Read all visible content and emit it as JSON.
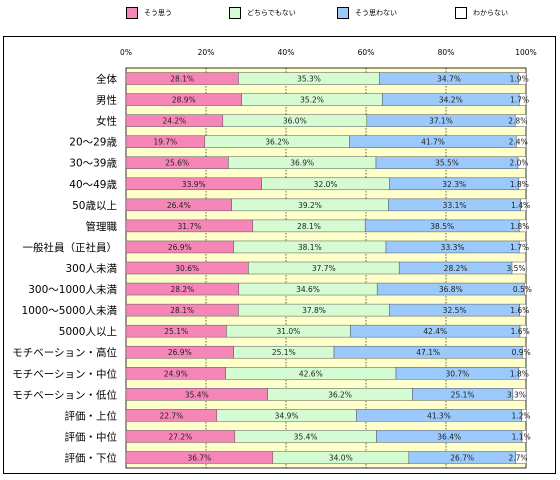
{
  "legend": [
    {
      "label": "そう思う",
      "color": "#f786b8"
    },
    {
      "label": "どちらでもない",
      "color": "#d5fbd2"
    },
    {
      "label": "そう思わない",
      "color": "#9cc9fc"
    },
    {
      "label": "わからない",
      "color": "#ffffff"
    }
  ],
  "chart_data": {
    "type": "bar",
    "orientation": "horizontal",
    "stacked": "100%",
    "plot_background": "#ffffcc",
    "xlim": [
      0,
      100
    ],
    "x_ticks": [
      "0%",
      "20%",
      "40%",
      "60%",
      "80%",
      "100%"
    ],
    "grid": true,
    "legend_position": "top",
    "categories": [
      "全体",
      "男性",
      "女性",
      "20～29歳",
      "30～39歳",
      "40～49歳",
      "50歳以上",
      "管理職",
      "一般社員（正社員）",
      "300人未満",
      "300～1000人未満",
      "1000～5000人未満",
      "5000人以上",
      "モチベーション・高位",
      "モチベーション・中位",
      "モチベーション・低位",
      "評価・上位",
      "評価・中位",
      "評価・下位"
    ],
    "series": [
      {
        "name": "そう思う",
        "color": "#f786b8",
        "values": [
          28.1,
          28.9,
          24.2,
          19.7,
          25.6,
          33.9,
          26.4,
          31.7,
          26.9,
          30.6,
          28.2,
          28.1,
          25.1,
          26.9,
          24.9,
          35.4,
          22.7,
          27.2,
          36.7
        ],
        "labels": [
          "28.1%",
          "28.9%",
          "24.2%",
          "19.7%",
          "25.6%",
          "33.9%",
          "26.4%",
          "31.7%",
          "26.9%",
          "30.6%",
          "28.2%",
          "28.1%",
          "25.1%",
          "26.9%",
          "24.9%",
          "35.4%",
          "22.7%",
          "27.2%",
          "36.7%"
        ]
      },
      {
        "name": "どちらでもない",
        "color": "#d5fbd2",
        "values": [
          35.3,
          35.2,
          36.0,
          36.2,
          36.9,
          32.0,
          39.2,
          28.1,
          38.1,
          37.7,
          34.6,
          37.8,
          31.0,
          25.1,
          42.6,
          36.2,
          34.9,
          35.4,
          34.0
        ],
        "labels": [
          "35.3%",
          "35.2%",
          "36.0%",
          "36.2%",
          "36.9%",
          "32.0%",
          "39.2%",
          "28.1%",
          "38.1%",
          "37.7%",
          "34.6%",
          "37.8%",
          "31.0%",
          "25.1%",
          "42.6%",
          "36.2%",
          "34.9%",
          "35.4%",
          "34.0%"
        ]
      },
      {
        "name": "そう思わない",
        "color": "#9cc9fc",
        "values": [
          34.7,
          34.2,
          37.1,
          41.7,
          35.5,
          32.3,
          33.1,
          38.5,
          33.3,
          28.2,
          36.8,
          32.5,
          42.4,
          47.1,
          30.7,
          25.1,
          41.3,
          36.4,
          26.7
        ],
        "labels": [
          "34.7%",
          "34.2%",
          "37.1%",
          "41.7%",
          "35.5%",
          "32.3%",
          "33.1%",
          "38.5%",
          "33.3%",
          "28.2%",
          "36.8%",
          "32.5%",
          "42.4%",
          "47.1%",
          "30.7%",
          "25.1%",
          "41.3%",
          "36.4%",
          "26.7%"
        ]
      },
      {
        "name": "わからない",
        "color": "#ffffff",
        "values": [
          1.9,
          1.7,
          2.8,
          2.4,
          2.0,
          1.8,
          1.4,
          1.8,
          1.7,
          3.5,
          0.5,
          1.6,
          1.6,
          0.9,
          1.8,
          3.3,
          1.2,
          1.1,
          2.7
        ],
        "labels": [
          "1.9%",
          "1.7%",
          "2.8%",
          "2.4%",
          "2.0%",
          "1.8%",
          "1.4%",
          "1.8%",
          "1.7%",
          "3.5%",
          "0.5%",
          "1.6%",
          "1.6%",
          "0.9%",
          "1.8%",
          "3.3%",
          "1.2%",
          "1.1%",
          "2.7%"
        ]
      }
    ]
  }
}
